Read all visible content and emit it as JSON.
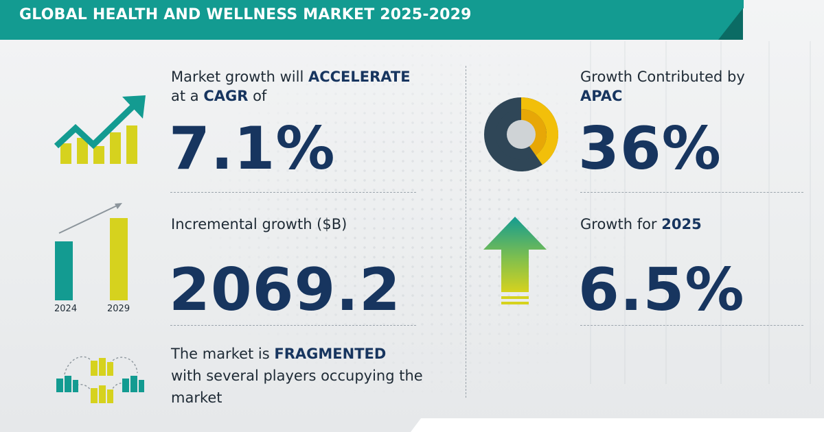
{
  "header": {
    "title": "GLOBAL HEALTH AND WELLNESS MARKET 2025-2029"
  },
  "cagr": {
    "line1_prefix": "Market growth will ",
    "line1_emph": "ACCELERATE",
    "line2_prefix": "at a ",
    "line2_emph": "CAGR",
    "line2_suffix": " of",
    "value": "7.1%"
  },
  "incremental": {
    "label": "Incremental growth ($B)",
    "value": "2069.2",
    "year_start": "2024",
    "year_end": "2029"
  },
  "market": {
    "line1_prefix": "The market is ",
    "line1_emph": "FRAGMENTED",
    "line2": "with several players occupying the",
    "line3": "market"
  },
  "region": {
    "label": "Growth Contributed by",
    "name": "APAC",
    "value": "36%",
    "share": 0.36
  },
  "yoy": {
    "label_prefix": "Growth for ",
    "year": "2025",
    "value": "6.5%"
  },
  "colors": {
    "teal": "#139b91",
    "navy": "#17355f",
    "yellow": "#d6d21e",
    "donut_dark": "#2f4657",
    "donut_accent": "#f2bf0a"
  },
  "icons": [
    "growth-chart-icon",
    "bar-comparison-icon",
    "fragmented-buildings-icon",
    "donut-chart-icon",
    "up-arrow-icon"
  ]
}
